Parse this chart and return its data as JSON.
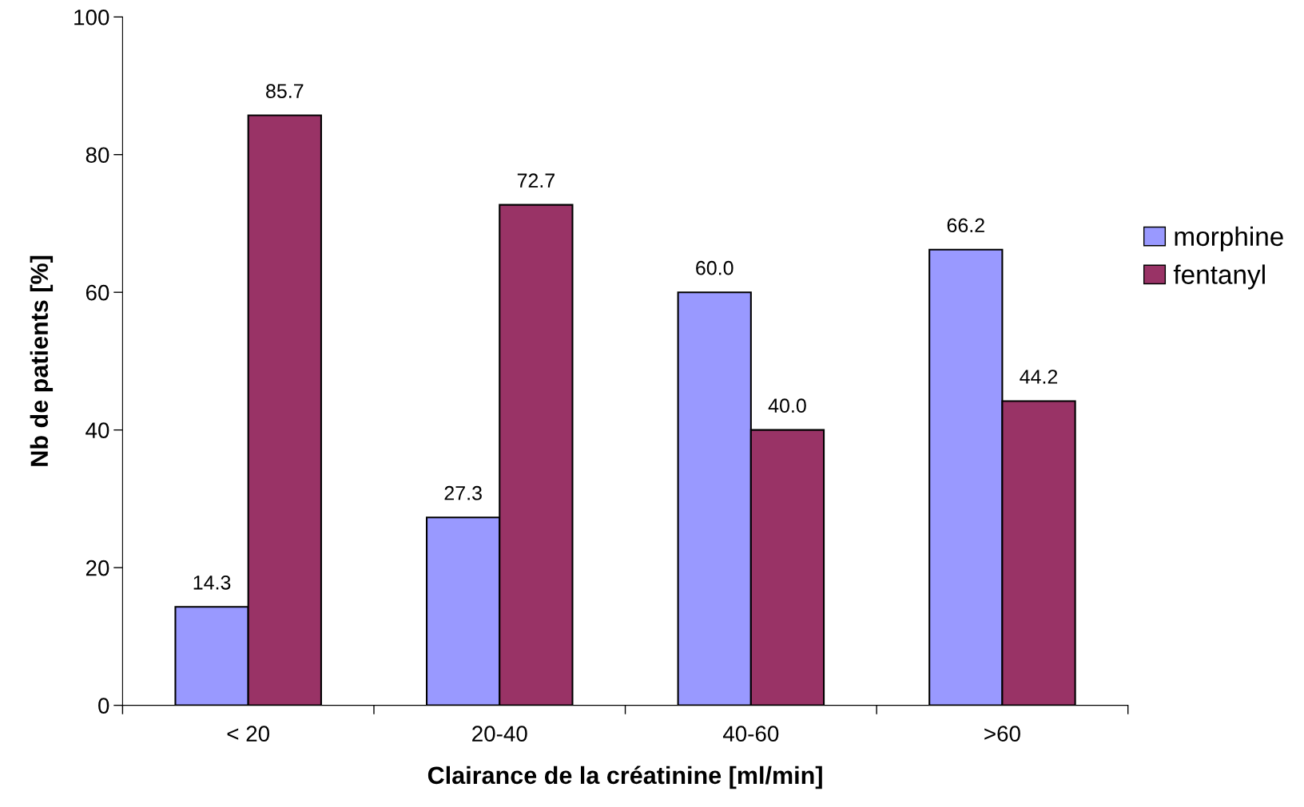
{
  "chart_data": {
    "type": "bar",
    "xlabel": "Clairance de la créatinine [ml/min]",
    "ylabel": "Nb de patients [%]",
    "categories": [
      "< 20",
      "20-40",
      "40-60",
      ">60"
    ],
    "series": [
      {
        "name": "morphine",
        "color": "#9999ff",
        "values": [
          14.3,
          27.3,
          60.0,
          66.2
        ],
        "value_labels": [
          "14.3",
          "27.3",
          "60.0",
          "66.2"
        ]
      },
      {
        "name": "fentanyl",
        "color": "#993366",
        "values": [
          85.7,
          72.7,
          40.0,
          44.2
        ],
        "value_labels": [
          "85.7",
          "72.7",
          "40.0",
          "44.2"
        ]
      }
    ],
    "ylim": [
      0,
      100
    ],
    "yticks": [
      0,
      20,
      40,
      60,
      80,
      100
    ],
    "grid": false,
    "legend": "right"
  }
}
